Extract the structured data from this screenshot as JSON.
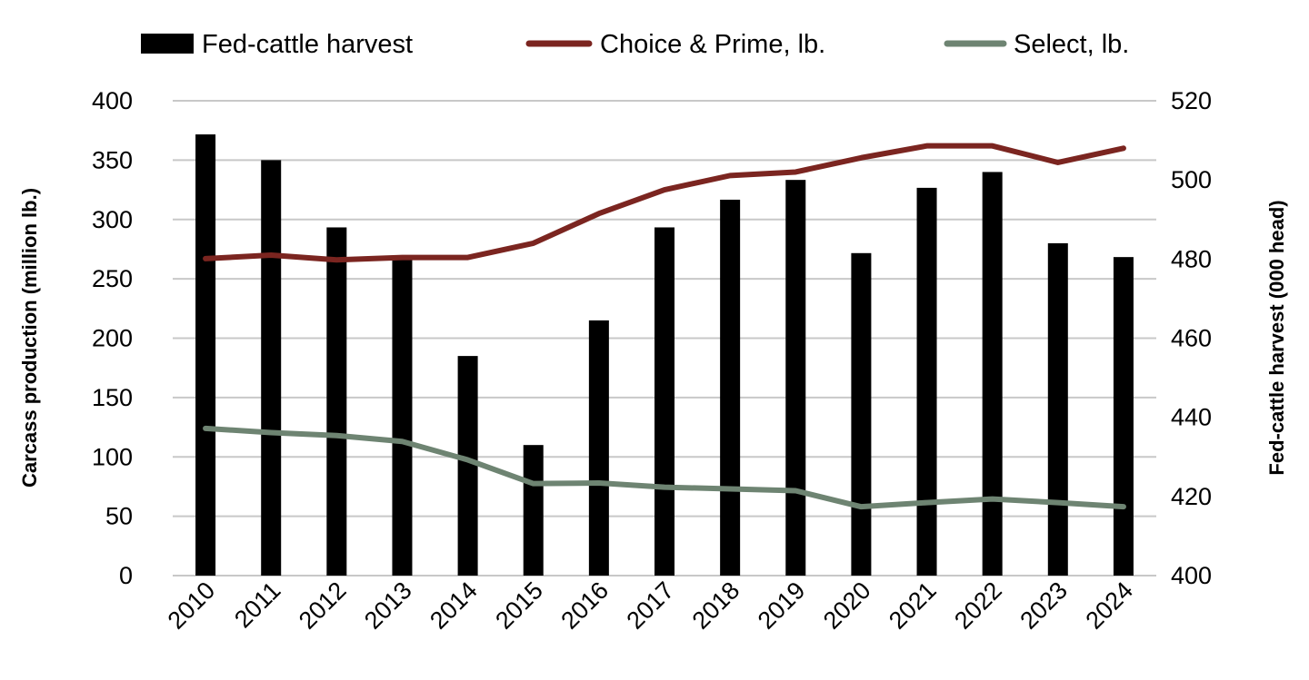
{
  "chart_data": {
    "type": "bar+line",
    "categories": [
      "2010",
      "2011",
      "2012",
      "2013",
      "2014",
      "2015",
      "2016",
      "2017",
      "2018",
      "2019",
      "2020",
      "2021",
      "2022",
      "2023",
      "2024"
    ],
    "series": [
      {
        "name": "Fed-cattle harvest",
        "type": "bar",
        "axis": "right",
        "color": "#000000",
        "values": [
          511.5,
          505,
          488,
          480.5,
          455.5,
          433,
          464.5,
          488,
          495,
          500,
          481.5,
          498,
          502,
          484,
          480.5
        ]
      },
      {
        "name": "Choice & Prime, lb.",
        "type": "line",
        "axis": "left",
        "color": "#7B2520",
        "values": [
          267,
          270,
          266,
          268,
          268,
          280,
          305,
          325,
          337,
          340,
          352,
          362,
          362,
          348,
          360
        ]
      },
      {
        "name": "Select, lb.",
        "type": "line",
        "axis": "left",
        "color": "#6E8472",
        "values": [
          124,
          120.5,
          118,
          113,
          97.5,
          77.5,
          78,
          74.5,
          73,
          71.5,
          58,
          61.5,
          64.5,
          61.5,
          58
        ]
      }
    ],
    "ylabel_left": "Carcass production (million lb.)",
    "ylabel_right": "Fed-cattle harvest (000 head)",
    "ylim_left": [
      0,
      400
    ],
    "ylim_right": [
      400,
      520
    ],
    "yticks_left": [
      "0",
      "50",
      "100",
      "150",
      "200",
      "250",
      "300",
      "350",
      "400"
    ],
    "yticks_right": [
      "400",
      "420",
      "440",
      "460",
      "480",
      "500",
      "520"
    ],
    "grid": true,
    "legend_position": "top"
  }
}
